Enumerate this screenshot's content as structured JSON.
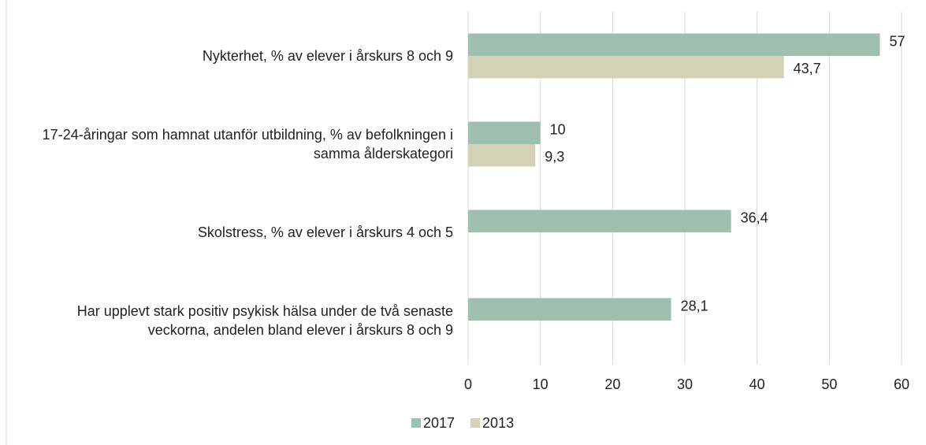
{
  "chart_data": {
    "type": "bar",
    "orientation": "horizontal",
    "categories": [
      "Nykterhet, % av elever i årskurs 8 och 9",
      "17-24-åringar som hamnat utanför utbildning, % av befolkningen i samma ålderskategori",
      "Skolstress, % av elever i årskurs 4 och 5",
      "Har upplevt stark positiv psykisk hälsa under de två senaste veckorna, andelen bland elever i årskurs 8 och 9"
    ],
    "series": [
      {
        "name": "2017",
        "color": "#9fbfb0",
        "values": [
          57,
          10,
          36.4,
          28.1
        ],
        "value_labels": [
          "57",
          "10",
          "36,4",
          "28,1"
        ]
      },
      {
        "name": "2013",
        "color": "#d3d1b6",
        "values": [
          43.7,
          9.3,
          null,
          null
        ],
        "value_labels": [
          "43,7",
          "9,3",
          null,
          null
        ]
      }
    ],
    "xlim": [
      0,
      60
    ],
    "xticks": [
      0,
      10,
      20,
      30,
      40,
      50,
      60
    ],
    "grid": true,
    "legend": "bottom"
  }
}
